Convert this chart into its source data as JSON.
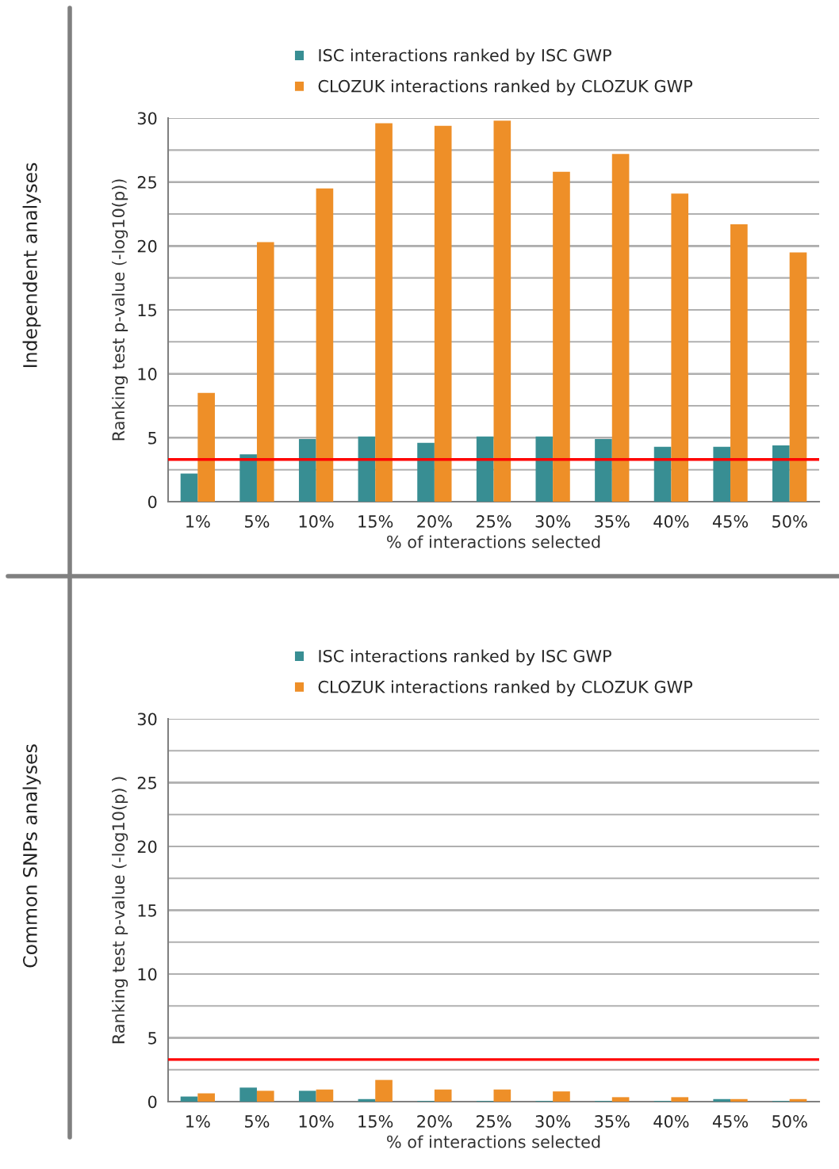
{
  "chart_data": [
    {
      "type": "bar",
      "annotations": [
        "Independent analyses"
      ],
      "xlabel": "% of interactions selected",
      "ylabel": "Ranking test p-value (-log10(p))",
      "categories": [
        "1%",
        "5%",
        "10%",
        "15%",
        "20%",
        "25%",
        "30%",
        "35%",
        "40%",
        "45%",
        "50%"
      ],
      "series": [
        {
          "name": "ISC interactions ranked by ISC GWP",
          "color": "#388e93",
          "values": [
            2.2,
            3.7,
            4.9,
            5.1,
            4.6,
            5.1,
            5.1,
            4.9,
            4.3,
            4.3,
            4.4
          ]
        },
        {
          "name": "CLOZUK interactions ranked by CLOZUK GWP",
          "color": "#ee8f28",
          "values": [
            8.5,
            20.3,
            24.5,
            29.6,
            29.4,
            29.8,
            25.8,
            27.2,
            24.1,
            21.7,
            19.5
          ]
        }
      ],
      "ylim": [
        0,
        30
      ],
      "yticks": [
        0,
        {
          "value": 2.5,
          "label": null
        },
        5,
        {
          "value": 7.5,
          "label": null
        },
        10,
        {
          "value": 12.5,
          "label": null
        },
        15,
        {
          "value": 17.5,
          "label": null
        },
        20,
        {
          "value": 22.5,
          "label": null
        },
        25,
        {
          "value": 27.5,
          "label": null
        },
        30
      ],
      "ref_lines": [
        {
          "axis": "y",
          "value": 3.3,
          "color": "#ff0000"
        }
      ],
      "grid": "y",
      "legend": "top"
    },
    {
      "type": "bar",
      "annotations": [
        "Common SNPs analyses"
      ],
      "xlabel": "% of interactions selected",
      "ylabel": "Ranking test p-value (-log10(p) )",
      "categories": [
        "1%",
        "5%",
        "10%",
        "15%",
        "20%",
        "25%",
        "30%",
        "35%",
        "40%",
        "45%",
        "50%"
      ],
      "series": [
        {
          "name": "ISC interactions ranked by ISC GWP",
          "color": "#388e93",
          "values": [
            0.4,
            1.1,
            0.85,
            0.2,
            0.05,
            0.05,
            0.05,
            0.05,
            0.05,
            0.2,
            0.05
          ]
        },
        {
          "name": "CLOZUK interactions ranked by CLOZUK GWP",
          "color": "#ee8f28",
          "values": [
            0.65,
            0.85,
            0.95,
            1.7,
            0.95,
            0.95,
            0.8,
            0.35,
            0.35,
            0.2,
            0.2
          ]
        }
      ],
      "ylim": [
        0,
        30
      ],
      "yticks": [
        0,
        {
          "value": 2.5,
          "label": null
        },
        5,
        {
          "value": 7.5,
          "label": null
        },
        10,
        {
          "value": 12.5,
          "label": null
        },
        15,
        {
          "value": 17.5,
          "label": null
        },
        20,
        {
          "value": 22.5,
          "label": null
        },
        25,
        {
          "value": 27.5,
          "label": null
        },
        30
      ],
      "ref_lines": [
        {
          "axis": "y",
          "value": 3.3,
          "color": "#ff0000"
        }
      ],
      "grid": "y",
      "legend": "top"
    }
  ]
}
